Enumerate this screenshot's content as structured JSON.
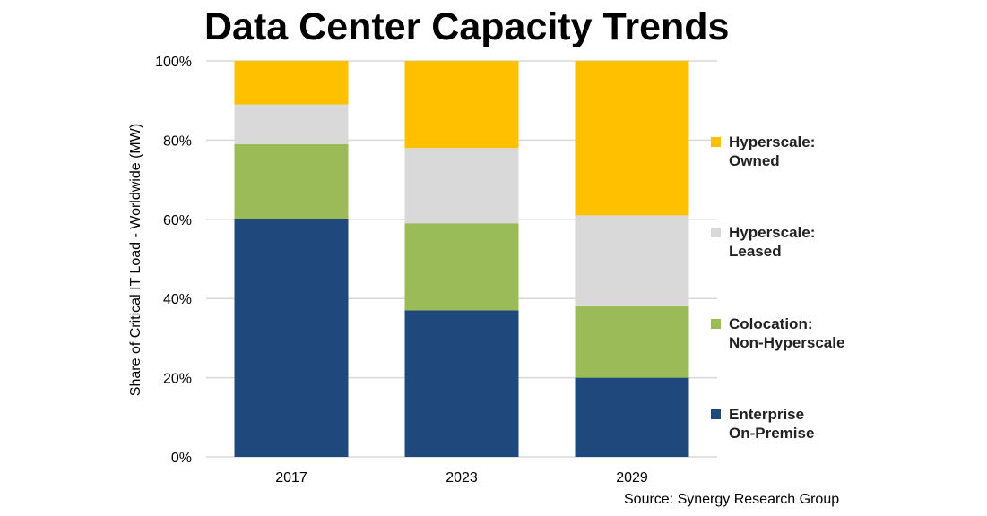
{
  "chart_data": {
    "type": "bar",
    "stacked": true,
    "title": "Data Center Capacity Trends",
    "xlabel": "",
    "ylabel": "Share of Critical IT Load - Worldwide (MW)",
    "ylim": [
      0,
      100
    ],
    "yticks": [
      "0%",
      "20%",
      "40%",
      "60%",
      "80%",
      "100%"
    ],
    "grid": true,
    "legend_position": "right",
    "categories": [
      "2017",
      "2023",
      "2029"
    ],
    "series": [
      {
        "name": "Enterprise On-Premise",
        "label_lines": [
          "Enterprise",
          "On-Premise"
        ],
        "color": "#1F497D",
        "values": [
          60,
          37,
          20
        ]
      },
      {
        "name": "Colocation: Non-Hyperscale",
        "label_lines": [
          "Colocation:",
          "Non-Hyperscale"
        ],
        "color": "#9BBB59",
        "values": [
          19,
          22,
          18
        ]
      },
      {
        "name": "Hyperscale: Leased",
        "label_lines": [
          "Hyperscale:",
          "Leased"
        ],
        "color": "#D9D9D9",
        "values": [
          10,
          19,
          23
        ]
      },
      {
        "name": "Hyperscale: Owned",
        "label_lines": [
          "Hyperscale:",
          "Owned"
        ],
        "color": "#FFC000",
        "values": [
          11,
          22,
          39
        ]
      }
    ],
    "source": "Source: Synergy Research Group"
  }
}
